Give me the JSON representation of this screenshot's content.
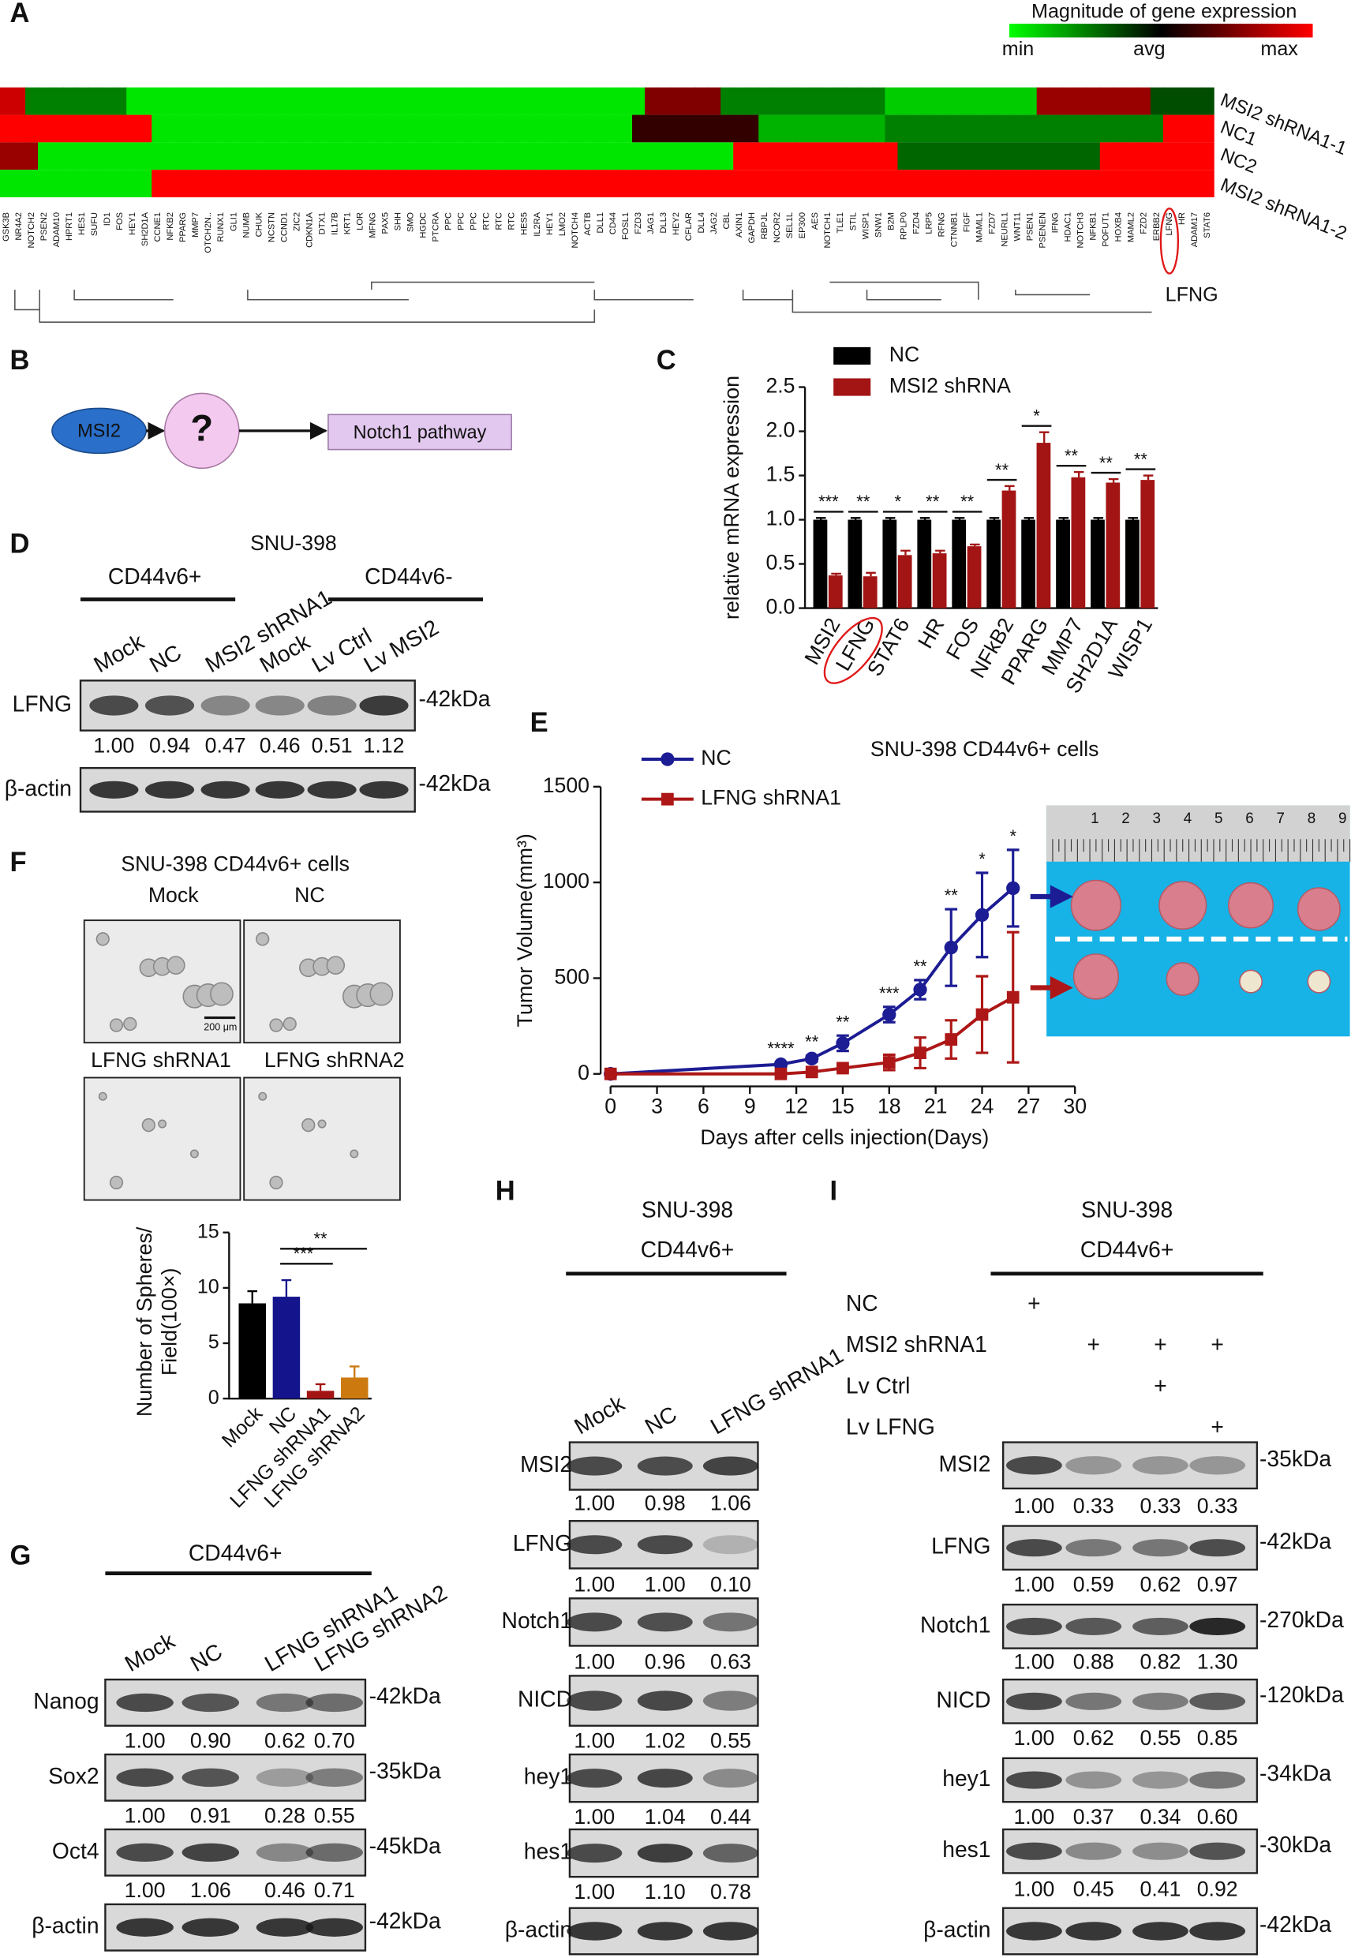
{
  "panel_labels": [
    "A",
    "B",
    "C",
    "D",
    "E",
    "F",
    "G",
    "H",
    "I"
  ],
  "heatmap": {
    "legend_title": "Magnitude of gene expression",
    "legend_labels": [
      "min",
      "avg",
      "max"
    ],
    "rows": [
      "MSI2 shRNA1-1",
      "NC1",
      "NC2",
      "MSI2 shRNA1-2"
    ],
    "genes": [
      "GSK3B",
      "NR4A2",
      "NOTCH2",
      "PSEN2",
      "ADAM10",
      "HPRT1",
      "HES1",
      "SUFU",
      "ID1",
      "FOS",
      "HEY1",
      "SH2D1A",
      "CCNE1",
      "NFKB2",
      "PPARG",
      "MMP7",
      "OTCH2N..",
      "RUNX1",
      "GLI1",
      "NUMB",
      "CHUK",
      "NCSTN",
      "CCND1",
      "ZIC2",
      "CDKN1A",
      "DTX1",
      "IL17B",
      "KRT1",
      "LOR",
      "MFNG",
      "PAX5",
      "SHH",
      "SMO",
      "HGDC",
      "PTCRA",
      "PPC",
      "PPC",
      "PPC",
      "RTC",
      "RTC",
      "RTC",
      "HES5",
      "IL2RA",
      "HEY1",
      "LMO2",
      "NOTCH4",
      "ACTB",
      "DLL1",
      "CD44",
      "FOSL1",
      "FZD3",
      "JAG1",
      "DLL3",
      "HEY2",
      "CFLAR",
      "DLL4",
      "JAG2",
      "CBL",
      "AXIN1",
      "GAPDH",
      "RBPJL",
      "NCOR2",
      "SEL1L",
      "EP300",
      "AES",
      "NOTCH1",
      "TLE1",
      "STIL",
      "WISP1",
      "SNW1",
      "B2M",
      "RPLP0",
      "FZD4",
      "LRP5",
      "RFNG",
      "CTNNB1",
      "FIGF",
      "MAML1",
      "FZD7",
      "NEURL1",
      "WNT11",
      "PSEN1",
      "PSENEN",
      "IFNG",
      "HDAC1",
      "NOTCH3",
      "NFKB1",
      "POFUT1",
      "HOXB4",
      "MAML2",
      "FZD2",
      "ERBB2",
      "LFNG",
      "HR",
      "ADAM17",
      "STAT6"
    ],
    "highlight": "LFNG",
    "values": [
      [
        0.8,
        0.8,
        -0.5,
        -0.5,
        -0.5,
        -0.5,
        -0.5,
        -0.5,
        -0.5,
        -0.5,
        -0.9,
        -0.9,
        -0.9,
        -0.9,
        -0.9,
        -0.9,
        -0.9,
        -0.9,
        -0.9,
        -0.9,
        -0.9,
        -0.9,
        -0.9,
        -0.9,
        -0.9,
        -0.9,
        -0.9,
        -0.9,
        -0.9,
        -0.9,
        -0.9,
        -0.9,
        -0.9,
        -0.9,
        -0.9,
        -0.9,
        -0.9,
        -0.9,
        -0.9,
        -0.9,
        -0.9,
        -0.9,
        -0.9,
        -0.9,
        -0.9,
        -0.9,
        -0.9,
        -0.9,
        -0.9,
        -0.9,
        -0.9,
        0.5,
        0.5,
        0.5,
        0.5,
        0.5,
        0.5,
        -0.5,
        -0.5,
        -0.5,
        -0.5,
        -0.5,
        -0.5,
        -0.5,
        -0.5,
        -0.5,
        -0.5,
        -0.5,
        -0.5,
        -0.5,
        -0.8,
        -0.8,
        -0.8,
        -0.8,
        -0.8,
        -0.8,
        -0.8,
        -0.8,
        -0.8,
        -0.8,
        -0.8,
        -0.8,
        0.6,
        0.6,
        0.6,
        0.6,
        0.6,
        0.6,
        0.6,
        0.6,
        0.6,
        -0.3,
        -0.3,
        -0.3,
        -0.3,
        -0.3
      ],
      [
        1,
        1,
        1,
        1,
        1,
        1,
        1,
        1,
        1,
        1,
        1,
        1,
        -0.9,
        -0.9,
        -0.9,
        -0.9,
        -0.9,
        -0.9,
        -0.9,
        -0.9,
        -0.9,
        -0.9,
        -0.9,
        -0.9,
        -0.9,
        -0.9,
        -0.9,
        -0.9,
        -0.9,
        -0.9,
        -0.9,
        -0.9,
        -0.9,
        -0.9,
        -0.9,
        -0.9,
        -0.9,
        -0.9,
        -0.9,
        -0.9,
        -0.9,
        -0.9,
        -0.9,
        -0.9,
        -0.9,
        -0.9,
        -0.9,
        -0.9,
        -0.9,
        -0.9,
        0.2,
        0.2,
        0.2,
        0.2,
        0.2,
        0.2,
        0.2,
        0.2,
        0.2,
        0.2,
        -0.7,
        -0.7,
        -0.7,
        -0.7,
        -0.7,
        -0.7,
        -0.7,
        -0.7,
        -0.7,
        -0.7,
        -0.5,
        -0.5,
        -0.5,
        -0.5,
        -0.5,
        -0.5,
        -0.5,
        -0.5,
        -0.5,
        -0.5,
        -0.5,
        -0.5,
        -0.5,
        -0.5,
        -0.5,
        -0.5,
        -0.5,
        -0.5,
        -0.5,
        -0.5,
        -0.5,
        -0.5,
        1,
        1,
        1,
        1
      ],
      [
        0.6,
        0.6,
        0.6,
        -0.9,
        -0.9,
        -0.9,
        -0.9,
        -0.9,
        -0.9,
        -0.9,
        -0.9,
        -0.9,
        -0.9,
        -0.9,
        -0.9,
        -0.9,
        -0.9,
        -0.9,
        -0.9,
        -0.9,
        -0.9,
        -0.9,
        -0.9,
        -0.9,
        -0.9,
        -0.9,
        -0.9,
        -0.9,
        -0.9,
        -0.9,
        -0.9,
        -0.9,
        -0.9,
        -0.9,
        -0.9,
        -0.9,
        -0.9,
        -0.9,
        -0.9,
        -0.9,
        -0.9,
        -0.9,
        -0.9,
        -0.9,
        -0.9,
        -0.9,
        -0.9,
        -0.9,
        -0.9,
        -0.9,
        -0.9,
        -0.9,
        -0.9,
        -0.9,
        -0.9,
        -0.9,
        -0.9,
        -0.9,
        1,
        1,
        1,
        1,
        1,
        1,
        1,
        1,
        1,
        1,
        1,
        1,
        1,
        -0.4,
        -0.4,
        -0.4,
        -0.4,
        -0.4,
        -0.4,
        -0.4,
        -0.4,
        -0.4,
        -0.4,
        -0.4,
        -0.4,
        -0.4,
        -0.4,
        -0.4,
        -0.4,
        1,
        1,
        1,
        1,
        1,
        1,
        1,
        1,
        1
      ],
      [
        -0.9,
        -0.9,
        -0.9,
        -0.9,
        -0.9,
        -0.9,
        -0.9,
        -0.9,
        -0.9,
        -0.9,
        -0.9,
        -0.9,
        1,
        1,
        1,
        1,
        1,
        1,
        1,
        1,
        1,
        1,
        1,
        1,
        1,
        1,
        1,
        1,
        1,
        1,
        1,
        1,
        1,
        1,
        1,
        1,
        1,
        1,
        1,
        1,
        1,
        1,
        1,
        1,
        1,
        1,
        1,
        1,
        1,
        1,
        1,
        1,
        1,
        1,
        1,
        1,
        1,
        1,
        1,
        1,
        1,
        1,
        1,
        1,
        1,
        1,
        1,
        1,
        1,
        1,
        1,
        1,
        1,
        1,
        1,
        1,
        1,
        1,
        1,
        1,
        1,
        1,
        1,
        1,
        1,
        1,
        1,
        1,
        1,
        1,
        1,
        1,
        1,
        1,
        1,
        1
      ]
    ]
  },
  "pathway": {
    "nodes": [
      "MSI2",
      "?",
      "Notch1 pathway"
    ]
  },
  "chart_data": [
    {
      "type": "bar",
      "ylabel": "relative mRNA expression",
      "categories": [
        "MSI2",
        "LFNG",
        "STAT6",
        "HR",
        "FOS",
        "NFkB2",
        "PPARG",
        "MMP7",
        "SH2D1A",
        "WISP1"
      ],
      "series": [
        {
          "name": "NC",
          "color": "#000000",
          "values": [
            1,
            1,
            1,
            1,
            1,
            1,
            1,
            1,
            1,
            1
          ],
          "errors": [
            0.02,
            0.02,
            0.02,
            0.02,
            0.02,
            0.02,
            0.02,
            0.02,
            0.02,
            0.02
          ]
        },
        {
          "name": "MSI2 shRNA",
          "color": "#a31414",
          "values": [
            0.37,
            0.36,
            0.6,
            0.62,
            0.7,
            1.33,
            1.87,
            1.48,
            1.42,
            1.45
          ],
          "errors": [
            0.02,
            0.04,
            0.05,
            0.03,
            0.02,
            0.05,
            0.12,
            0.06,
            0.04,
            0.05
          ]
        }
      ],
      "significance": [
        "***",
        "**",
        "*",
        "**",
        "**",
        "**",
        "*",
        "**",
        "**",
        "**"
      ],
      "ylim": [
        0,
        2.5
      ],
      "yticks": [
        {
          "value": 0,
          "label": "0.0"
        },
        {
          "value": 0.5,
          "label": "0.5"
        },
        {
          "value": 1,
          "label": "1.0"
        },
        {
          "value": 1.5,
          "label": "1.5"
        },
        {
          "value": 2,
          "label": "2.0"
        },
        {
          "value": 2.5,
          "label": "2.5"
        }
      ]
    },
    {
      "type": "line",
      "title": "SNU-398 CD44v6+ cells",
      "xlabel": "Days after cells injection(Days)",
      "ylabel": "Tumor Volume(mm³)",
      "x": [
        0,
        11,
        13,
        15,
        18,
        20,
        22,
        24,
        26
      ],
      "series": [
        {
          "name": "NC",
          "color": "#1c1c94",
          "marker": "circle",
          "values": [
            0,
            50,
            80,
            160,
            310,
            440,
            660,
            830,
            970
          ],
          "errors": [
            0,
            10,
            15,
            40,
            40,
            50,
            200,
            220,
            200
          ]
        },
        {
          "name": "LFNG shRNA1",
          "color": "#ad1717",
          "marker": "square",
          "values": [
            0,
            0,
            10,
            30,
            60,
            110,
            180,
            310,
            400
          ],
          "errors": [
            0,
            5,
            10,
            10,
            40,
            80,
            100,
            200,
            340
          ]
        }
      ],
      "significance": [
        null,
        "****",
        "**",
        "**",
        "***",
        "**",
        "**",
        "*",
        "*"
      ],
      "xlim": [
        0,
        30
      ],
      "xticks": [
        0,
        3,
        6,
        9,
        12,
        15,
        18,
        21,
        24,
        27,
        30
      ],
      "ylim": [
        0,
        1500
      ],
      "yticks": [
        0,
        500,
        1000,
        1500
      ],
      "photo_scale": [
        "1",
        "2",
        "3",
        "4",
        "5",
        "6",
        "7",
        "8",
        "9"
      ]
    },
    {
      "type": "bar",
      "title": "SNU-398 CD44v6+ cells",
      "scale_bar": "200 μm",
      "ylabel": [
        "Number of Spheres/",
        "Field(100×)"
      ],
      "categories": [
        "Mock",
        "NC",
        "LFNG shRNA1",
        "LFNG shRNA2"
      ],
      "values": [
        8.6,
        9.2,
        0.7,
        1.9
      ],
      "errors": [
        1.1,
        1.5,
        0.6,
        1.0
      ],
      "colors": [
        "#000000",
        "#14148c",
        "#a31414",
        "#cc7a10"
      ],
      "ylim": [
        0,
        15
      ],
      "yticks": [
        0,
        5,
        10,
        15
      ],
      "comparisons": [
        {
          "label": "***",
          "from": 1,
          "to": 2
        },
        {
          "label": "**",
          "from": 1,
          "to": 3
        }
      ]
    }
  ],
  "blots": {
    "D": {
      "header": "SNU-398",
      "groups": [
        "CD44v6+",
        "CD44v6-"
      ],
      "lanes": [
        "Mock",
        "NC",
        "MSI2 shRNA1",
        "Mock",
        "Lv Ctrl",
        "Lv MSI2"
      ],
      "rows": [
        {
          "label": "LFNG",
          "size": "-42kDa",
          "quant": [
            "1.00",
            "0.94",
            "0.47",
            "0.46",
            "0.51",
            "1.12"
          ]
        },
        {
          "label": "β-actin",
          "size": "-42kDa"
        }
      ]
    },
    "G": {
      "header": "CD44v6+",
      "lanes": [
        "Mock",
        "NC",
        "LFNG shRNA1",
        "LFNG shRNA2"
      ],
      "rows": [
        {
          "label": "Nanog",
          "size": "-42kDa",
          "quant": [
            "1.00",
            "0.90",
            "0.62",
            "0.70"
          ]
        },
        {
          "label": "Sox2",
          "size": "-35kDa",
          "quant": [
            "1.00",
            "0.91",
            "0.28",
            "0.55"
          ]
        },
        {
          "label": "Oct4",
          "size": "-45kDa",
          "quant": [
            "1.00",
            "1.06",
            "0.46",
            "0.71"
          ]
        },
        {
          "label": "β-actin",
          "size": "-42kDa"
        }
      ]
    },
    "H": {
      "header": [
        "SNU-398",
        "CD44v6+"
      ],
      "lanes": [
        "Mock",
        "NC",
        "LFNG shRNA1"
      ],
      "rows": [
        {
          "label": "MSI2",
          "quant": [
            "1.00",
            "0.98",
            "1.06"
          ]
        },
        {
          "label": "LFNG",
          "quant": [
            "1.00",
            "1.00",
            "0.10"
          ]
        },
        {
          "label": "Notch1",
          "quant": [
            "1.00",
            "0.96",
            "0.63"
          ]
        },
        {
          "label": "NICD",
          "quant": [
            "1.00",
            "1.02",
            "0.55"
          ]
        },
        {
          "label": "hey1",
          "quant": [
            "1.00",
            "1.04",
            "0.44"
          ]
        },
        {
          "label": "hes1",
          "quant": [
            "1.00",
            "1.10",
            "0.78"
          ]
        },
        {
          "label": "β-actin"
        }
      ]
    },
    "I": {
      "header": [
        "SNU-398",
        "CD44v6+"
      ],
      "plus": "+",
      "conditions": [
        {
          "label": "NC",
          "lanes": [
            0
          ]
        },
        {
          "label": "MSI2 shRNA1",
          "lanes": [
            1,
            2,
            3
          ]
        },
        {
          "label": "Lv Ctrl",
          "lanes": [
            2
          ]
        },
        {
          "label": "Lv LFNG",
          "lanes": [
            3
          ]
        }
      ],
      "rows": [
        {
          "label": "MSI2",
          "size": "-35kDa",
          "quant": [
            "1.00",
            "0.33",
            "0.33",
            "0.33"
          ]
        },
        {
          "label": "LFNG",
          "size": "-42kDa",
          "quant": [
            "1.00",
            "0.59",
            "0.62",
            "0.97"
          ]
        },
        {
          "label": "Notch1",
          "size": "-270kDa",
          "quant": [
            "1.00",
            "0.88",
            "0.82",
            "1.30"
          ]
        },
        {
          "label": "NICD",
          "size": "-120kDa",
          "quant": [
            "1.00",
            "0.62",
            "0.55",
            "0.85"
          ]
        },
        {
          "label": "hey1",
          "size": "-34kDa",
          "quant": [
            "1.00",
            "0.37",
            "0.34",
            "0.60"
          ]
        },
        {
          "label": "hes1",
          "size": "-30kDa",
          "quant": [
            "1.00",
            "0.45",
            "0.41",
            "0.92"
          ]
        },
        {
          "label": "β-actin",
          "size": "-42kDa"
        }
      ]
    }
  }
}
